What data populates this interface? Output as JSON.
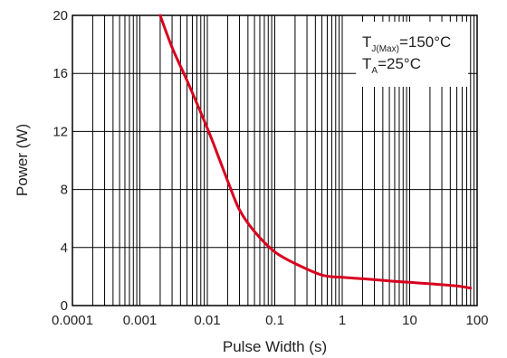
{
  "chart_data": {
    "type": "line",
    "xlabel": "Pulse Width (s)",
    "ylabel": "Power (W)",
    "xscale": "log",
    "xlim": [
      0.0001,
      100
    ],
    "ylim": [
      0,
      20
    ],
    "grid": true,
    "x_ticks": [
      "0.0001",
      "0.001",
      "0.01",
      "0.1",
      "1",
      "10",
      "100"
    ],
    "y_ticks": [
      "0",
      "4",
      "8",
      "12",
      "16",
      "20"
    ],
    "annotation": {
      "line1_main": "T",
      "line1_sub": "J(Max)",
      "line1_rest": "=150°C",
      "line2_main": "T",
      "line2_sub": "A",
      "line2_rest": "=25°C",
      "placement": "top-right"
    },
    "series": [
      {
        "color": "#d8001f",
        "x": [
          0.002,
          0.003,
          0.005,
          0.008,
          0.012,
          0.02,
          0.03,
          0.05,
          0.1,
          0.2,
          0.5,
          1,
          2,
          5,
          10,
          20,
          50,
          80
        ],
        "y": [
          20,
          17.8,
          15.5,
          13.3,
          11.3,
          8.6,
          6.6,
          5.1,
          3.7,
          2.9,
          2.1,
          1.95,
          1.85,
          1.7,
          1.6,
          1.5,
          1.35,
          1.2
        ]
      }
    ]
  }
}
